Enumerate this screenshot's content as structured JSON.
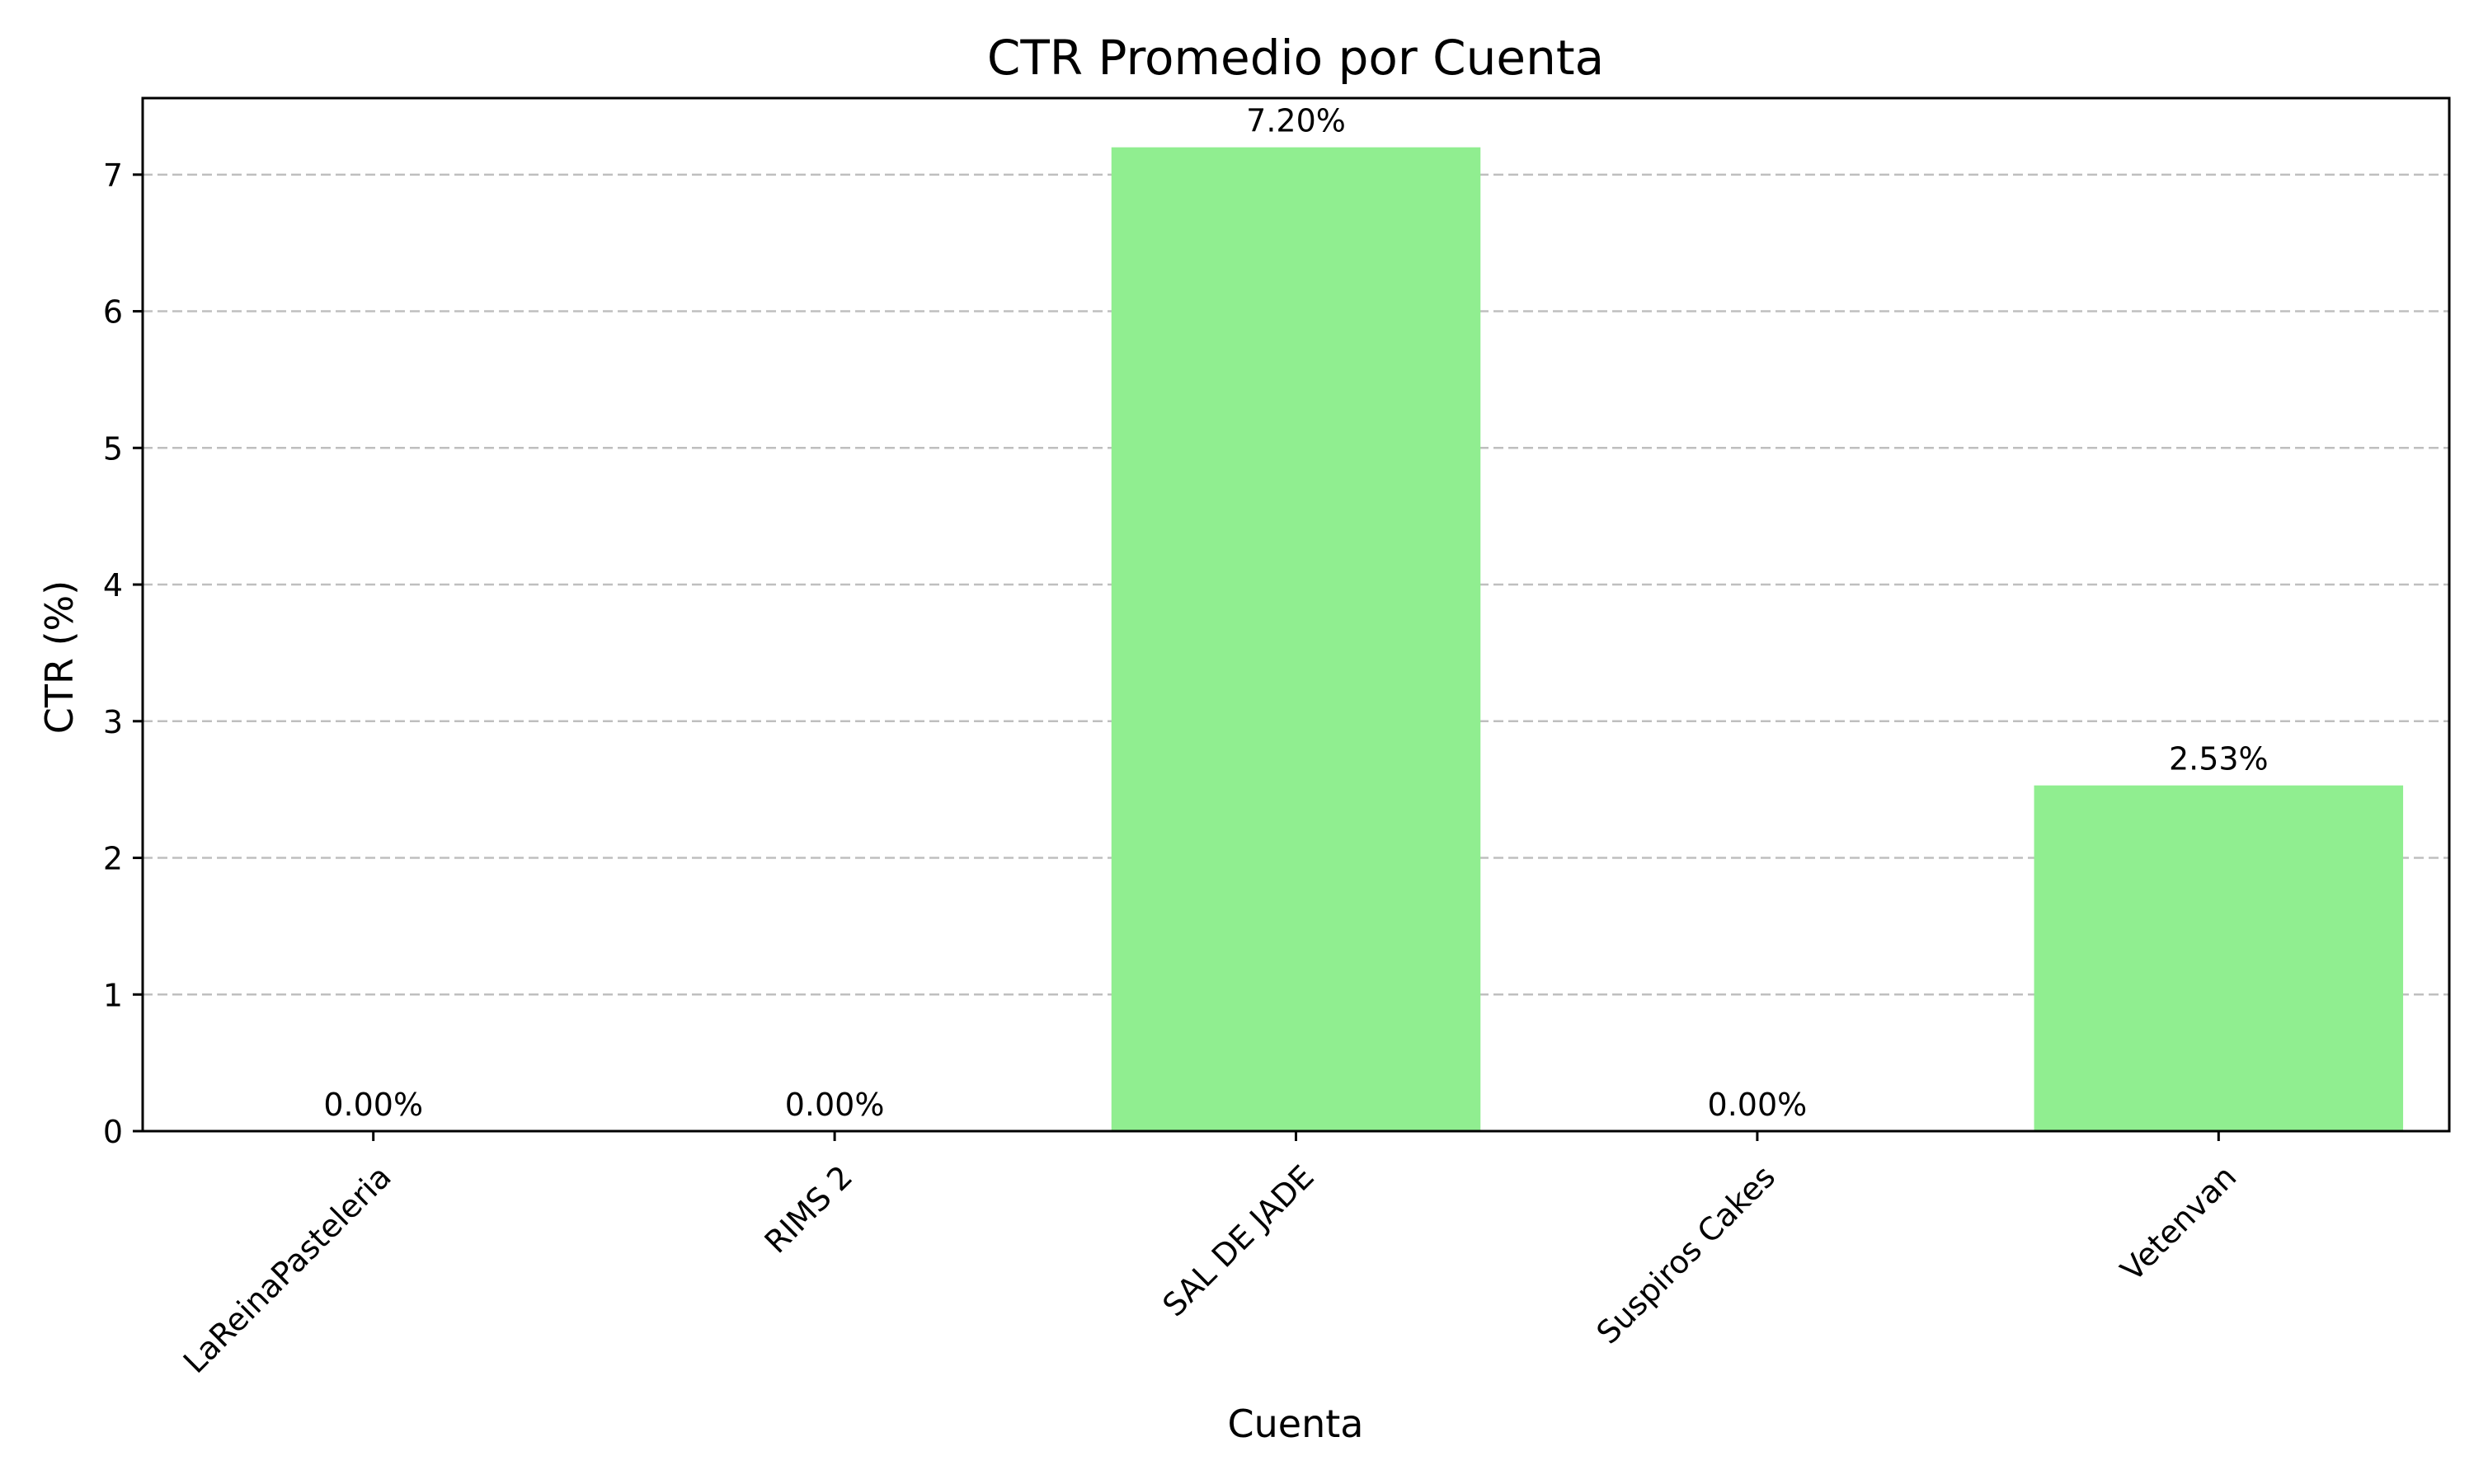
{
  "chart_data": {
    "type": "bar",
    "title": "CTR Promedio por Cuenta",
    "xlabel": "Cuenta",
    "ylabel": "CTR (%)",
    "categories": [
      "LaReinaPasteleria",
      "RIMS 2",
      "SAL DE JADE",
      "Suspiros Cakes",
      "Vetenvan"
    ],
    "values": [
      0.0,
      0.0,
      7.2,
      0.0,
      2.53
    ],
    "data_labels": [
      "0.00%",
      "0.00%",
      "7.20%",
      "0.00%",
      "2.53%"
    ],
    "ylim": [
      0,
      7.56
    ],
    "yticks": [
      0,
      1,
      2,
      3,
      4,
      5,
      6,
      7
    ],
    "grid": "y-dashed",
    "bar_color": "#90ee90",
    "grid_color": "#bfbfbf"
  }
}
